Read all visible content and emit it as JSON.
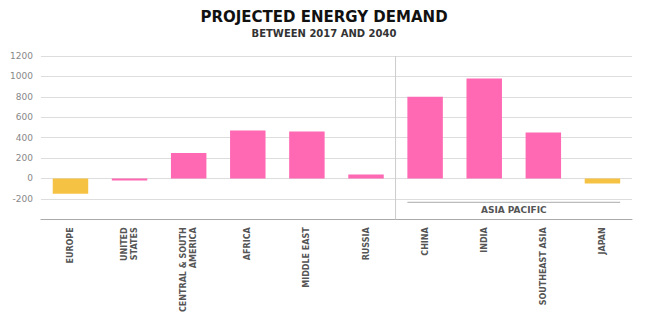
{
  "chart_data": {
    "type": "bar",
    "title": "PROJECTED ENERGY DEMAND",
    "subtitle": "BETWEEN 2017 AND 2040",
    "categories": [
      "EUROPE",
      "UNITED\nSTATES",
      "CENTRAL & SOUTH\nAMERICA",
      "AFRICA",
      "MIDDLE EAST",
      "RUSSIA",
      "CHINA",
      "INDIA",
      "SOUTHEAST ASIA",
      "JAPAN"
    ],
    "values": [
      -150,
      -20,
      250,
      470,
      460,
      40,
      800,
      980,
      450,
      -50
    ],
    "colors": [
      "#F5C244",
      "#FF69B4",
      "#FF69B4",
      "#FF69B4",
      "#FF69B4",
      "#FF69B4",
      "#FF69B4",
      "#FF69B4",
      "#FF69B4",
      "#F5C244"
    ],
    "ylim": [
      -400,
      1200
    ],
    "yticks": [
      -200,
      0,
      200,
      400,
      600,
      800,
      1000,
      1200
    ],
    "grid": true,
    "annotations": [
      {
        "text": "ASIA PACIFIC",
        "from": "CHINA",
        "to": "JAPAN"
      }
    ]
  }
}
